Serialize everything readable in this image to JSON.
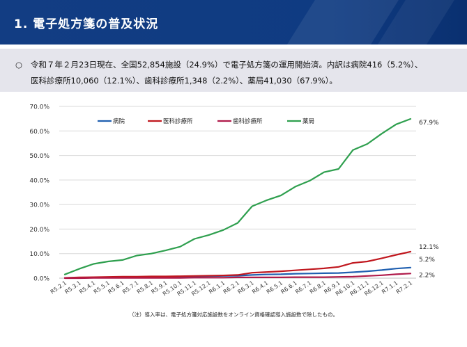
{
  "header": {
    "title": "1. 電子処方箋の普及状況"
  },
  "summary": {
    "bullet": "○",
    "line1": "令和７年２月23日現在、全国52,854施設（24.9%）で電子処方箋の運用開始済。内訳は病院416（5.2%）、",
    "line2": "医科診療所10,060（12.1%）、歯科診療所1,348（2.2%）、薬局41,030（67.9%）。"
  },
  "footnote": "（注）導入率は、電子処方箋対応施設数をオンライン資格確認導入施設数で除したもの。",
  "colors": {
    "title_bar": "#123d83",
    "hospital": "#1f5fb0",
    "clinic": "#c0171e",
    "dental": "#b01a4a",
    "pharmacy": "#2e9f4e"
  },
  "chart_data": {
    "type": "line",
    "title": "",
    "xlabel": "",
    "ylabel": "",
    "ylim": [
      0,
      70
    ],
    "yticks": [
      "0.0%",
      "10.0%",
      "20.0%",
      "30.0%",
      "40.0%",
      "50.0%",
      "60.0%",
      "70.0%"
    ],
    "grid": true,
    "legend_position": "top",
    "categories": [
      "R5.2.1",
      "R5.3.1",
      "R5.4.1",
      "R5.5.1",
      "R5.6.1",
      "R5.7.1",
      "R5.8.1",
      "R5.9.1",
      "R5.10.1",
      "R5.11.1",
      "R5.12.1",
      "R6.1.1",
      "R6.2.1",
      "R6.3.1",
      "R6.4.1",
      "R6.5.1",
      "R6.6.1",
      "R6.7.1",
      "R6.8.1",
      "R6.9.1",
      "R6.10.1",
      "R6.11.1",
      "R6.12.1",
      "R7.1.1",
      "R7.2.1"
    ],
    "series": [
      {
        "name": "病院",
        "color": "#1f5fb0",
        "values": [
          0.1,
          0.2,
          0.3,
          0.3,
          0.4,
          0.4,
          0.5,
          0.5,
          0.6,
          0.7,
          0.8,
          0.9,
          1.0,
          1.3,
          1.5,
          1.6,
          1.8,
          1.9,
          2.0,
          2.1,
          2.4,
          2.8,
          3.3,
          3.9,
          4.3
        ],
        "end_label": "5.2%"
      },
      {
        "name": "医科診療所",
        "color": "#c0171e",
        "values": [
          0.1,
          0.3,
          0.4,
          0.5,
          0.6,
          0.6,
          0.7,
          0.7,
          0.8,
          0.9,
          1.0,
          1.1,
          1.3,
          2.2,
          2.5,
          2.8,
          3.2,
          3.6,
          4.0,
          4.6,
          6.2,
          6.8,
          8.1,
          9.5,
          10.8
        ],
        "end_label": "12.1%"
      },
      {
        "name": "歯科診療所",
        "color": "#b01a4a",
        "values": [
          0.0,
          0.0,
          0.1,
          0.1,
          0.1,
          0.1,
          0.1,
          0.1,
          0.1,
          0.2,
          0.2,
          0.2,
          0.3,
          0.3,
          0.3,
          0.3,
          0.4,
          0.4,
          0.4,
          0.5,
          0.6,
          0.9,
          1.2,
          1.6,
          1.9
        ],
        "end_label": "2.2%"
      },
      {
        "name": "薬局",
        "color": "#2e9f4e",
        "values": [
          1.5,
          3.8,
          5.8,
          6.8,
          7.4,
          9.2,
          10.0,
          11.3,
          12.8,
          16.0,
          17.6,
          19.6,
          22.5,
          29.3,
          31.7,
          33.7,
          37.3,
          39.7,
          43.2,
          44.5,
          52.2,
          54.7,
          58.9,
          62.7,
          64.9
        ],
        "end_label": "67.9%"
      }
    ]
  }
}
